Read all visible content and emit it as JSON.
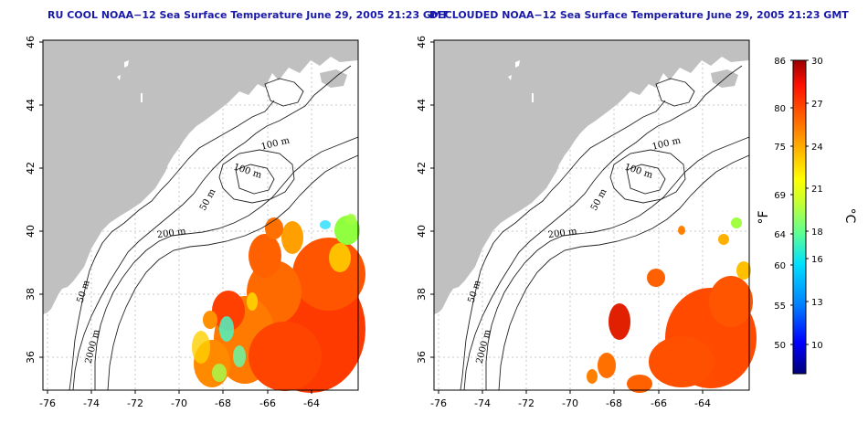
{
  "maps": [
    {
      "title": "RU COOL NOAA−12 Sea Surface Temperature June 29, 2005 21:23 GMT",
      "x_ticks": [
        "-76",
        "-74",
        "-72",
        "-70",
        "-68",
        "-66",
        "-64"
      ],
      "y_ticks": [
        "46",
        "44",
        "42",
        "40",
        "38",
        "36"
      ],
      "contour_labels": [
        "100 m",
        "100 m",
        "50 m",
        "200 m",
        "50 m",
        "2000 m"
      ]
    },
    {
      "title": "DECLOUDED NOAA−12 Sea Surface Temperature June 29, 2005 21:23 GMT",
      "x_ticks": [
        "-76",
        "-74",
        "-72",
        "-70",
        "-68",
        "-66",
        "-64"
      ],
      "y_ticks": [
        "46",
        "44",
        "42",
        "40",
        "38",
        "36"
      ],
      "contour_labels": [
        "100 m",
        "100 m",
        "50 m",
        "200 m",
        "50 m",
        "2000 m"
      ]
    }
  ],
  "colorbar": {
    "fahrenheit_ticks": [
      "86",
      "80",
      "75",
      "69",
      "64",
      "60",
      "55",
      "50"
    ],
    "celsius_ticks": [
      "30",
      "27",
      "24",
      "21",
      "18",
      "16",
      "13",
      "10"
    ],
    "fahrenheit_unit": "°F",
    "celsius_unit": "°C",
    "colors": [
      "#00007a",
      "#0000ff",
      "#0080ff",
      "#00e0ff",
      "#60ff90",
      "#c8ff30",
      "#ffff00",
      "#ffb000",
      "#ff6000",
      "#ff1000",
      "#9a0000"
    ]
  }
}
